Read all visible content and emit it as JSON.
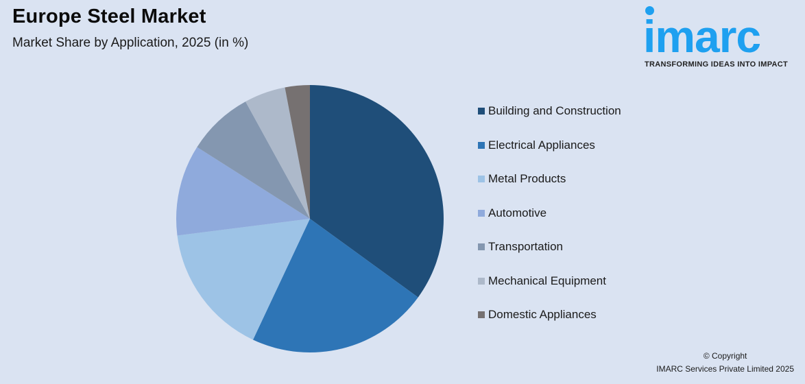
{
  "header": {
    "title": "Europe Steel Market",
    "subtitle": "Market Share by Application, 2025 (in %)"
  },
  "logo": {
    "wordmark": "imarc",
    "tagline": "TRANSFORMING IDEAS INTO IMPACT",
    "color": "#1ea0f0"
  },
  "legend": {
    "items": [
      {
        "label": "Building and Construction",
        "color": "#1f4e79"
      },
      {
        "label": "Electrical Appliances",
        "color": "#2e75b6"
      },
      {
        "label": "Metal Products",
        "color": "#9dc3e6"
      },
      {
        "label": "Automotive",
        "color": "#8faadc"
      },
      {
        "label": "Transportation",
        "color": "#8497b0"
      },
      {
        "label": "Mechanical Equipment",
        "color": "#adb9ca"
      },
      {
        "label": "Domestic Appliances",
        "color": "#767171"
      }
    ]
  },
  "footer": {
    "copyright_line1": "© Copyright",
    "copyright_line2": "IMARC Services Private Limited 2025"
  },
  "chart_data": {
    "type": "pie",
    "title": "Europe Steel Market",
    "subtitle": "Market Share by Application, 2025 (in %)",
    "categories": [
      "Building and Construction",
      "Electrical Appliances",
      "Metal Products",
      "Automotive",
      "Transportation",
      "Mechanical Equipment",
      "Domestic Appliances"
    ],
    "values": [
      35,
      22,
      16,
      11,
      8,
      5,
      3
    ],
    "colors": [
      "#1f4e79",
      "#2e75b6",
      "#9dc3e6",
      "#8faadc",
      "#8497b0",
      "#adb9ca",
      "#767171"
    ],
    "start_angle_deg": 0,
    "direction": "clockwise",
    "data_labels": false,
    "legend_position": "right"
  }
}
